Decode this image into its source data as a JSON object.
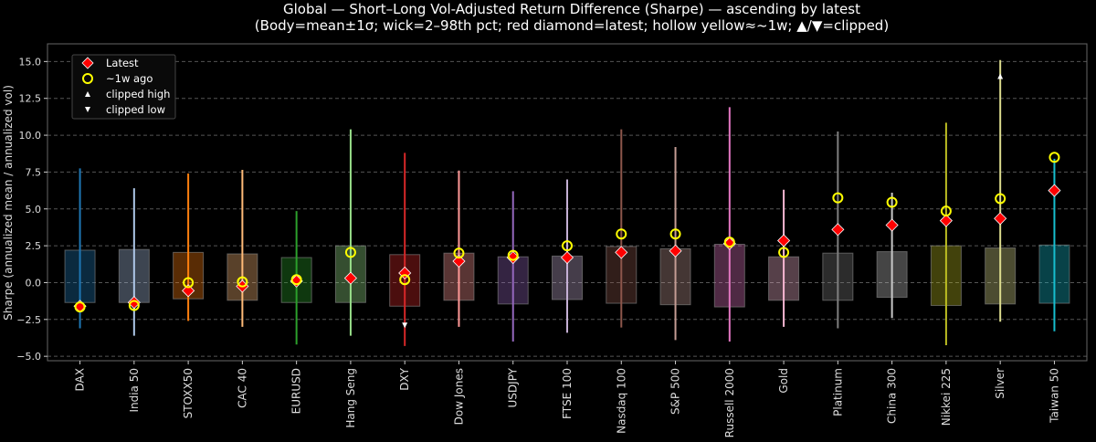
{
  "chart_data": {
    "type": "box-range",
    "title": "Global — Short–Long Vol-Adjusted Return Difference (Sharpe) — ascending by latest",
    "subtitle": "(Body=mean±1σ; wick=2–98th pct; red diamond=latest; hollow yellow≈~1w; ▲/▼=clipped)",
    "ylabel": "Sharpe (annualized mean / annualized vol)",
    "xlabel": "",
    "ylim": [
      -5.3,
      16.2
    ],
    "yticks": [
      -5.0,
      -2.5,
      0.0,
      2.5,
      5.0,
      7.5,
      10.0,
      12.5,
      15.0
    ],
    "ytick_labels": [
      "−5.0",
      "−2.5",
      "0.0",
      "2.5",
      "5.0",
      "7.5",
      "10.0",
      "12.5",
      "15.0"
    ],
    "grid": "horizontal dashed",
    "legend_position": "top-left",
    "legend": [
      {
        "label": "Latest",
        "marker": "red-diamond",
        "color": "#ff0000"
      },
      {
        "label": "~1w ago",
        "marker": "hollow-circle",
        "color": "#ffff00"
      },
      {
        "label": "clipped high",
        "marker": "triangle-up",
        "color": "#ffffff"
      },
      {
        "label": "clipped low",
        "marker": "triangle-down",
        "color": "#ffffff"
      }
    ],
    "categories": [
      "DAX",
      "India 50",
      "STOXX50",
      "CAC 40",
      "EURUSD",
      "Hang Seng",
      "DXY",
      "Dow Jones",
      "USDJPY",
      "FTSE 100",
      "Nasdaq 100",
      "S&P 500",
      "Russell 2000",
      "Gold",
      "Platinum",
      "China 300",
      "Nikkei 225",
      "Silver",
      "Taiwan 50"
    ],
    "colors": [
      "#1f77b4",
      "#aec7e8",
      "#ff7f0e",
      "#ffbb78",
      "#2ca02c",
      "#98df8a",
      "#d62728",
      "#ff9896",
      "#9467bd",
      "#c5b0d5",
      "#8c564b",
      "#c49c94",
      "#e377c2",
      "#f7b6d2",
      "#7f7f7f",
      "#c7c7c7",
      "#bcbd22",
      "#dbdb8d",
      "#17becf"
    ],
    "body_high": [
      2.2,
      2.25,
      2.05,
      1.95,
      1.7,
      2.5,
      1.9,
      2.0,
      1.75,
      1.8,
      2.45,
      2.3,
      2.6,
      1.75,
      2.0,
      2.1,
      2.5,
      2.35,
      2.55
    ],
    "body_low": [
      -1.35,
      -1.35,
      -1.1,
      -1.2,
      -1.35,
      -1.35,
      -1.6,
      -1.2,
      -1.45,
      -1.15,
      -1.4,
      -1.5,
      -1.65,
      -1.2,
      -1.2,
      -1.0,
      -1.55,
      -1.45,
      -1.4
    ],
    "wick_high": [
      7.75,
      6.4,
      7.4,
      7.65,
      4.85,
      10.4,
      8.8,
      7.6,
      6.2,
      7.0,
      10.4,
      9.2,
      11.9,
      6.3,
      10.25,
      6.1,
      10.85,
      15.1,
      8.4
    ],
    "wick_low": [
      -3.1,
      -3.6,
      -2.6,
      -3.0,
      -4.2,
      -3.6,
      -4.3,
      -3.0,
      -4.0,
      -3.4,
      -3.05,
      -3.9,
      -4.0,
      -3.0,
      -3.1,
      -2.4,
      -4.25,
      -2.65,
      -3.3
    ],
    "latest": [
      -1.6,
      -1.35,
      -0.55,
      -0.25,
      0.1,
      0.3,
      0.65,
      1.45,
      1.7,
      1.7,
      2.05,
      2.15,
      2.65,
      2.85,
      3.6,
      3.9,
      4.2,
      4.35,
      6.25
    ],
    "week_ago": [
      -1.65,
      -1.55,
      0.0,
      0.05,
      0.2,
      2.05,
      0.2,
      2.0,
      1.85,
      2.5,
      3.3,
      3.3,
      2.75,
      2.05,
      5.75,
      5.45,
      4.85,
      5.7,
      8.5
    ],
    "clipped_high": [
      null,
      null,
      null,
      null,
      null,
      null,
      null,
      null,
      null,
      null,
      null,
      null,
      null,
      null,
      null,
      null,
      null,
      14.0,
      null
    ],
    "clipped_low": [
      null,
      null,
      null,
      null,
      null,
      null,
      -2.9,
      null,
      null,
      null,
      null,
      null,
      null,
      null,
      null,
      null,
      null,
      null,
      null
    ]
  }
}
